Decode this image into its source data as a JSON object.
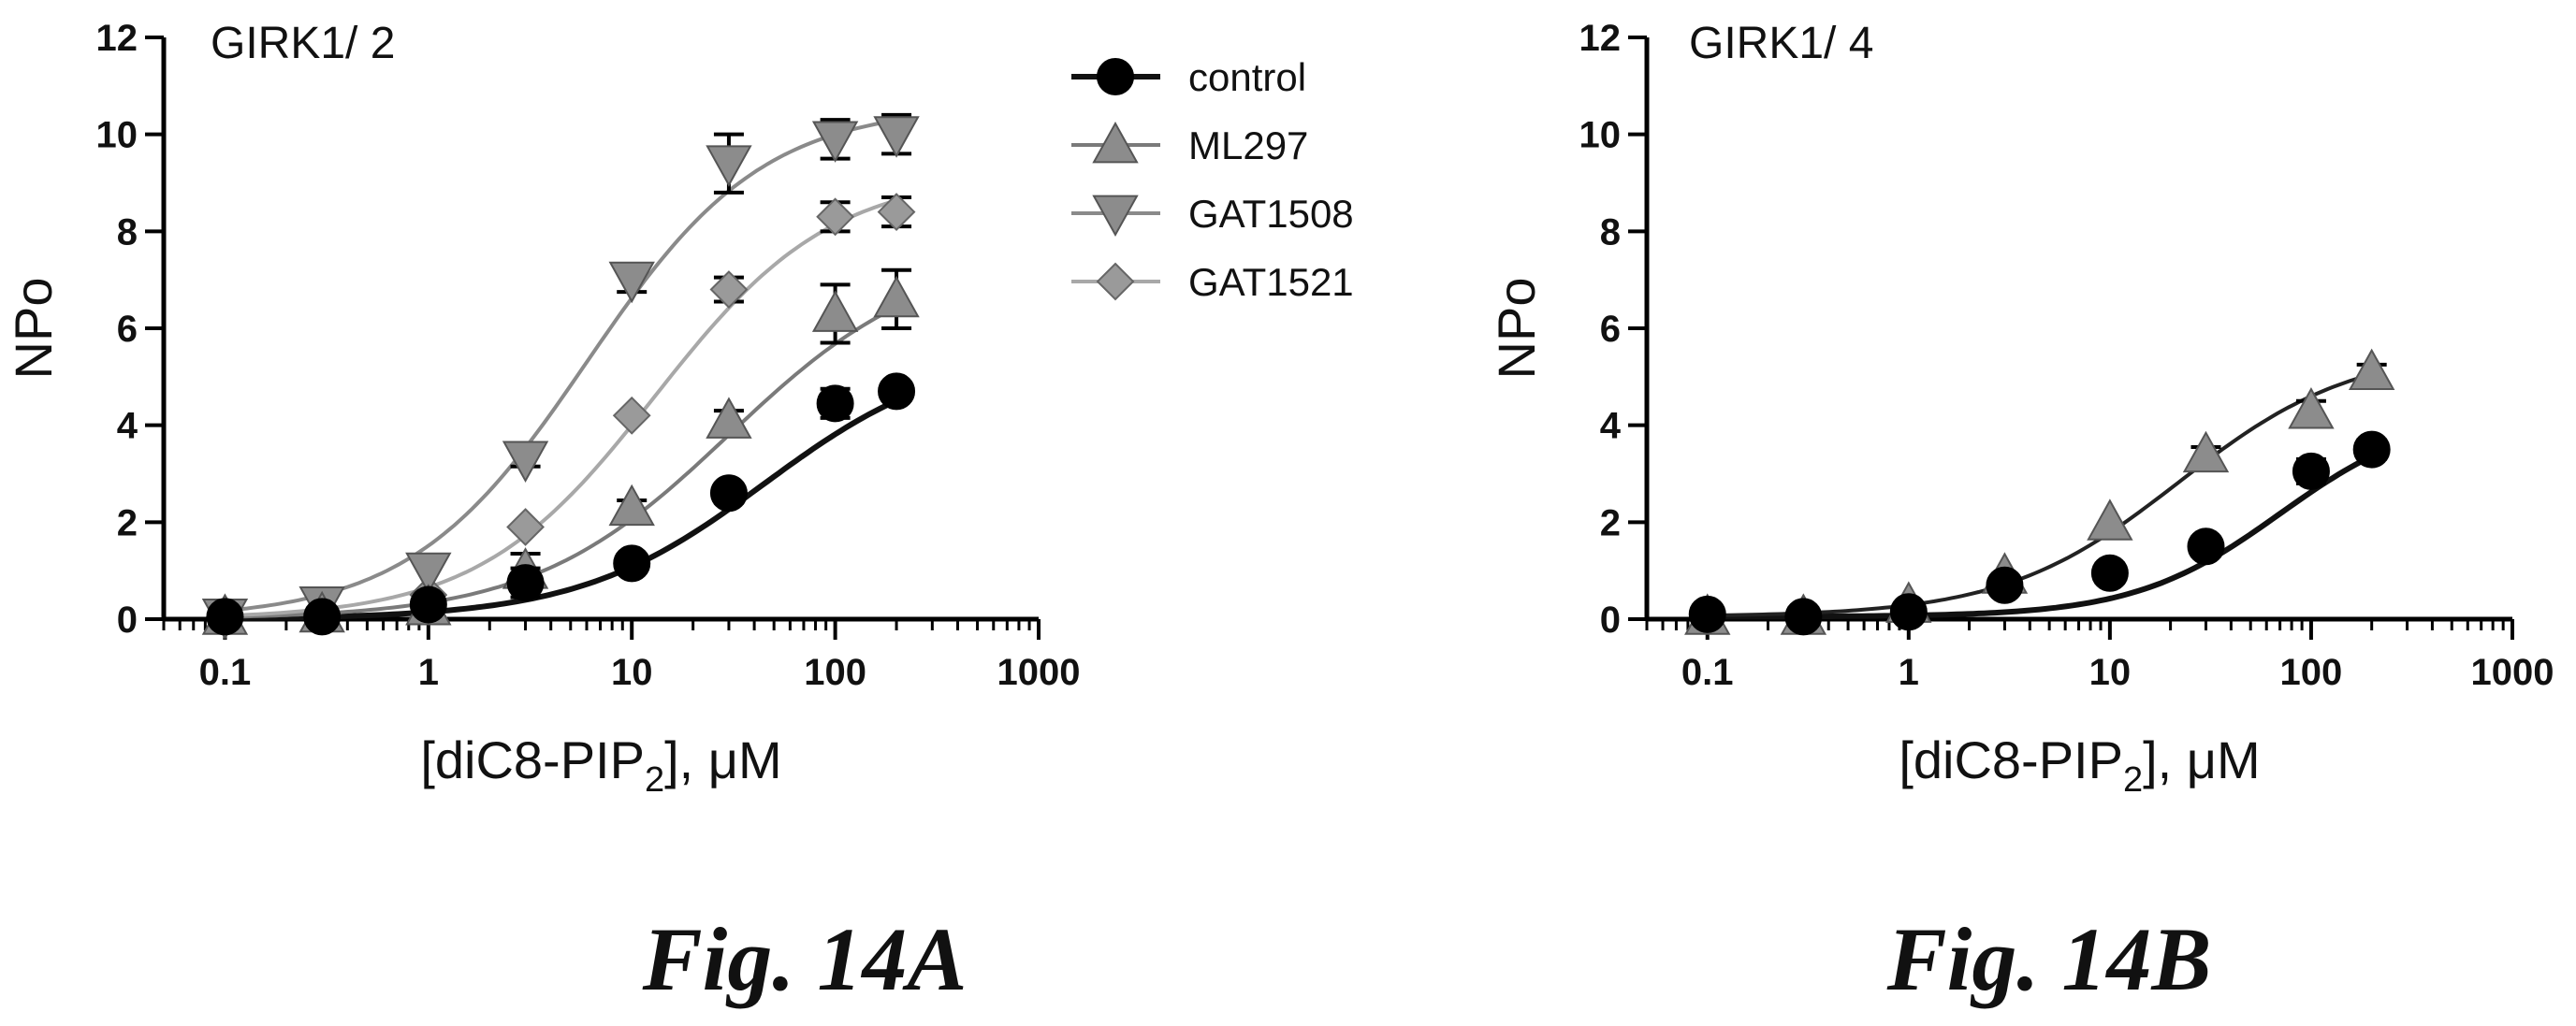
{
  "captions": {
    "a": "Fig. 14A",
    "b": "Fig. 14B"
  },
  "chart_data": [
    {
      "type": "line",
      "title": "GIRK1/ 2",
      "xlabel": "[diC8-PIP",
      "xlabel_sub": "2",
      "xlabel_suffix": "], μM",
      "ylabel": "NPo",
      "x_scale": "log",
      "xlim": [
        0.05,
        1000
      ],
      "ylim": [
        0,
        12
      ],
      "x_ticks": [
        0.1,
        1,
        10,
        100,
        1000
      ],
      "x_tick_labels": [
        "0.1",
        "1",
        "10",
        "100",
        "1000"
      ],
      "y_ticks": [
        0,
        2,
        4,
        6,
        8,
        10,
        12
      ],
      "y_tick_labels": [
        "0",
        "2",
        "4",
        "6",
        "8",
        "10",
        "12"
      ],
      "legend_position": "top-right",
      "grid": false,
      "x": [
        0.1,
        0.3,
        1,
        3,
        10,
        30,
        100,
        200
      ],
      "series": [
        {
          "name": "control",
          "marker": "circle",
          "color": "#000000",
          "line_color": "#111111",
          "y": [
            0.05,
            0.05,
            0.3,
            0.75,
            1.15,
            2.6,
            4.45,
            4.7
          ],
          "err": [
            0.05,
            0.05,
            0.1,
            0.3,
            0.1,
            0.2,
            0.3,
            0.15
          ],
          "fit": {
            "bottom": 0,
            "top": 5.6,
            "ec50": 45,
            "hill": 0.95
          }
        },
        {
          "name": "ML297",
          "marker": "triangle-up",
          "color": "#8c8c8c",
          "line_color": "#7a7a7a",
          "y": [
            0.05,
            0.1,
            0.25,
            1.0,
            2.3,
            4.1,
            6.3,
            6.6
          ],
          "err": [
            0.05,
            0.05,
            0.1,
            0.35,
            0.15,
            0.2,
            0.6,
            0.6
          ],
          "fit": {
            "bottom": 0,
            "top": 7.6,
            "ec50": 30,
            "hill": 0.9
          }
        },
        {
          "name": "GAT1508",
          "marker": "triangle-down",
          "color": "#8c8c8c",
          "line_color": "#8a8a8a",
          "y": [
            0.05,
            0.3,
            1.0,
            3.3,
            7.0,
            9.4,
            9.9,
            10.0
          ],
          "err": [
            0.05,
            0.1,
            0.1,
            0.15,
            0.25,
            0.6,
            0.4,
            0.4
          ],
          "fit": {
            "bottom": 0,
            "top": 10.6,
            "ec50": 6,
            "hill": 1.0
          }
        },
        {
          "name": "GAT1521",
          "marker": "diamond",
          "color": "#9a9a9a",
          "line_color": "#a8a8a8",
          "y": [
            0.05,
            0.1,
            0.5,
            1.9,
            4.2,
            6.8,
            8.3,
            8.4
          ],
          "err": [
            0.05,
            0.05,
            0.1,
            0.1,
            0.1,
            0.25,
            0.3,
            0.3
          ],
          "fit": {
            "bottom": 0,
            "top": 9.2,
            "ec50": 13,
            "hill": 1.0
          }
        }
      ]
    },
    {
      "type": "line",
      "title": "GIRK1/ 4",
      "xlabel": "[diC8-PIP",
      "xlabel_sub": "2",
      "xlabel_suffix": "], μM",
      "ylabel": "NPo",
      "x_scale": "log",
      "xlim": [
        0.05,
        1000
      ],
      "ylim": [
        0,
        12
      ],
      "x_ticks": [
        0.1,
        1,
        10,
        100,
        1000
      ],
      "x_tick_labels": [
        "0.1",
        "1",
        "10",
        "100",
        "1000"
      ],
      "y_ticks": [
        0,
        2,
        4,
        6,
        8,
        10,
        12
      ],
      "y_tick_labels": [
        "0",
        "2",
        "4",
        "6",
        "8",
        "10",
        "12"
      ],
      "grid": false,
      "x": [
        0.1,
        0.3,
        1,
        3,
        10,
        30,
        100,
        200
      ],
      "series": [
        {
          "name": "control",
          "marker": "circle",
          "color": "#000000",
          "line_color": "#111111",
          "y": [
            0.1,
            0.05,
            0.15,
            0.7,
            0.95,
            1.5,
            3.05,
            3.5
          ],
          "err": [
            0.05,
            0.05,
            0.1,
            0.15,
            0.2,
            0.2,
            0.25,
            0.2
          ],
          "fit": {
            "bottom": 0.05,
            "top": 4.3,
            "ec50": 70,
            "hill": 1.2
          }
        },
        {
          "name": "ML297",
          "marker": "triangle-up",
          "color": "#8c8c8c",
          "line_color": "#222222",
          "y": [
            0.05,
            0.05,
            0.3,
            0.9,
            2.0,
            3.4,
            4.3,
            5.1
          ],
          "err": [
            0.05,
            0.05,
            0.1,
            0.1,
            0.1,
            0.15,
            0.2,
            0.15
          ],
          "fit": {
            "bottom": 0.05,
            "top": 5.6,
            "ec50": 22,
            "hill": 1.0
          }
        }
      ]
    }
  ]
}
